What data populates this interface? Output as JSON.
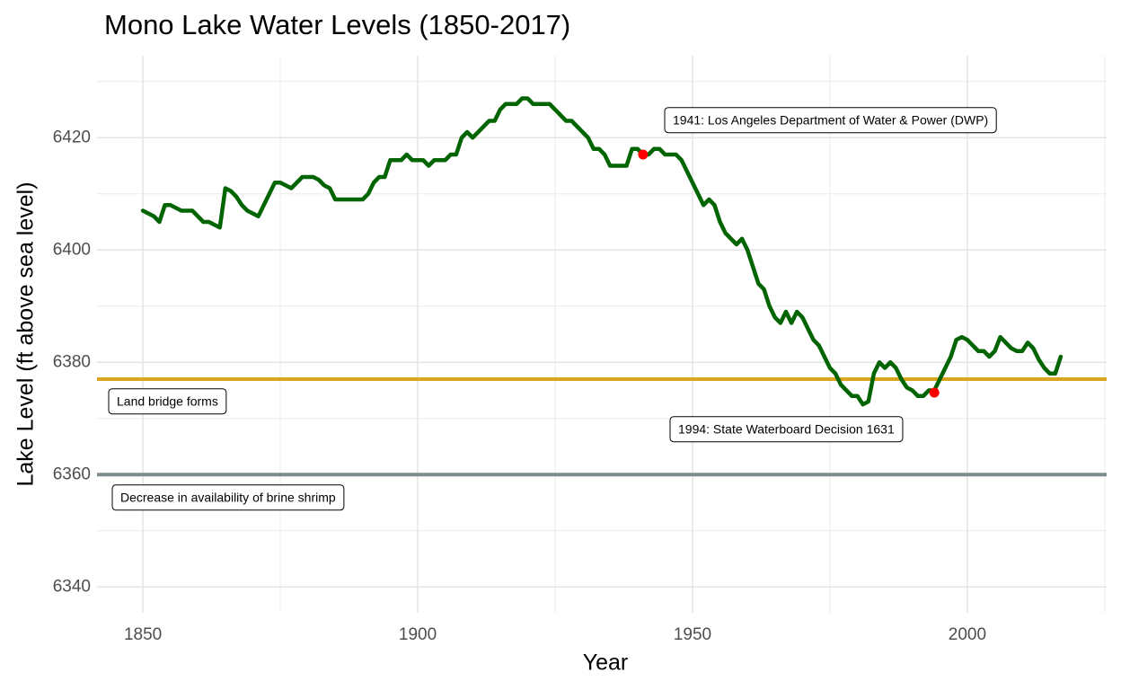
{
  "chart_data": {
    "type": "line",
    "title": "Mono Lake Water Levels (1850-2017)",
    "x_label": "Year",
    "y_label": "Lake Level (ft above sea level)",
    "x": [
      1850,
      1851,
      1852,
      1853,
      1854,
      1855,
      1856,
      1857,
      1858,
      1859,
      1860,
      1861,
      1862,
      1863,
      1864,
      1865,
      1866,
      1867,
      1868,
      1869,
      1870,
      1871,
      1872,
      1873,
      1874,
      1875,
      1876,
      1877,
      1878,
      1879,
      1880,
      1881,
      1882,
      1883,
      1884,
      1885,
      1886,
      1887,
      1888,
      1889,
      1890,
      1891,
      1892,
      1893,
      1894,
      1895,
      1896,
      1897,
      1898,
      1899,
      1900,
      1901,
      1902,
      1903,
      1904,
      1905,
      1906,
      1907,
      1908,
      1909,
      1910,
      1911,
      1912,
      1913,
      1914,
      1915,
      1916,
      1917,
      1918,
      1919,
      1920,
      1921,
      1922,
      1923,
      1924,
      1925,
      1926,
      1927,
      1928,
      1929,
      1930,
      1931,
      1932,
      1933,
      1934,
      1935,
      1936,
      1937,
      1938,
      1939,
      1940,
      1941,
      1942,
      1943,
      1944,
      1945,
      1946,
      1947,
      1948,
      1949,
      1950,
      1951,
      1952,
      1953,
      1954,
      1955,
      1956,
      1957,
      1958,
      1959,
      1960,
      1961,
      1962,
      1963,
      1964,
      1965,
      1966,
      1967,
      1968,
      1969,
      1970,
      1971,
      1972,
      1973,
      1974,
      1975,
      1976,
      1977,
      1978,
      1979,
      1980,
      1981,
      1982,
      1983,
      1984,
      1985,
      1986,
      1987,
      1988,
      1989,
      1990,
      1991,
      1992,
      1993,
      1994,
      1995,
      1996,
      1997,
      1998,
      1999,
      2000,
      2001,
      2002,
      2003,
      2004,
      2005,
      2006,
      2007,
      2008,
      2009,
      2010,
      2011,
      2012,
      2013,
      2014,
      2015,
      2016,
      2017
    ],
    "values": [
      6407,
      6406.5,
      6406,
      6405,
      6408,
      6408,
      6407.5,
      6407,
      6407,
      6407,
      6406,
      6405,
      6405,
      6404.5,
      6404,
      6411,
      6410.5,
      6409.5,
      6408,
      6407,
      6406.5,
      6406,
      6408,
      6410,
      6412,
      6412,
      6411.5,
      6411,
      6412,
      6413,
      6413,
      6413,
      6412.5,
      6411.5,
      6411,
      6409,
      6409,
      6409,
      6409,
      6409,
      6409,
      6410,
      6412,
      6413,
      6413,
      6416,
      6416,
      6416,
      6417,
      6416,
      6416,
      6416,
      6415,
      6416,
      6416,
      6416,
      6417,
      6417,
      6420,
      6421,
      6420,
      6421,
      6422,
      6423,
      6423,
      6425,
      6426,
      6426,
      6426,
      6427,
      6427,
      6426,
      6426,
      6426,
      6426,
      6425,
      6424,
      6423,
      6423,
      6422,
      6421,
      6420,
      6418,
      6418,
      6417,
      6415,
      6415,
      6415,
      6415,
      6418,
      6418,
      6417,
      6417,
      6418,
      6418,
      6417,
      6417,
      6417,
      6416,
      6414,
      6412,
      6410,
      6408,
      6409,
      6408,
      6405,
      6403,
      6402,
      6401,
      6402,
      6400,
      6397,
      6394,
      6393,
      6390,
      6388,
      6387,
      6389,
      6387,
      6389,
      6388,
      6386,
      6384,
      6383,
      6381,
      6379,
      6378,
      6376,
      6375,
      6374,
      6374,
      6372.5,
      6373,
      6378,
      6380,
      6379,
      6380,
      6379,
      6377,
      6375.5,
      6375,
      6374,
      6374,
      6375,
      6375,
      6377,
      6379,
      6381,
      6384,
      6384.5,
      6384,
      6383,
      6382,
      6382,
      6381,
      6382,
      6384.5,
      6383.5,
      6382.5,
      6382,
      6382,
      6383.5,
      6382.5,
      6380.5,
      6379,
      6378,
      6378,
      6381
    ],
    "color": "#006400",
    "highlight_points": {
      "x": [
        1941,
        1994
      ],
      "values": [
        6417,
        6374.6
      ],
      "color": "#ff0000"
    },
    "hlines": [
      {
        "value": 6377,
        "color": "#DAA520"
      },
      {
        "value": 6360,
        "color": "#7F8C8D"
      }
    ],
    "annotations": [
      "1941: Los Angeles Department of Water & Power (DWP)",
      "1994: State Waterboard Decision 1631",
      "Land bridge forms",
      "Decrease in availability of brine shrimp"
    ],
    "xlim": [
      1841.65,
      2025.35
    ],
    "ylim": [
      6335.4,
      6434.6
    ],
    "xticks": [
      1850,
      1900,
      1950,
      2000
    ],
    "yticks": [
      6340,
      6360,
      6380,
      6400,
      6420
    ],
    "x_minor_ticks": [
      1875,
      1925,
      1975,
      2025
    ],
    "y_minor_ticks": [
      6350,
      6370,
      6390,
      6410,
      6430
    ],
    "grid": true
  }
}
